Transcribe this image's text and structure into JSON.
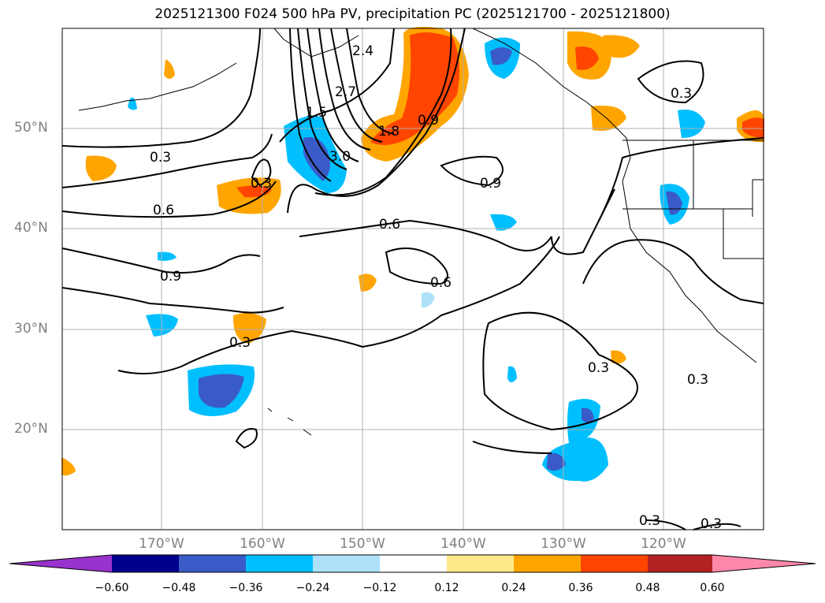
{
  "title": "2025121300 F024 500 hPa PV, precipitation PC (2025121700 - 2025121800)",
  "lat_labels": [
    "50°N",
    "40°N",
    "30°N",
    "20°N"
  ],
  "lon_labels": [
    "170°W",
    "160°W",
    "150°W",
    "140°W",
    "130°W",
    "120°W"
  ],
  "contour_labels": [
    "0.3",
    "0.6",
    "0.9",
    "0.3",
    "0.6",
    "0.9",
    "0.6",
    "0.9",
    "0.3",
    "0.3",
    "0.3",
    "0.3",
    "0.3",
    "0.3",
    "3.0",
    "1.8",
    "1.5",
    "2.4",
    "2.7"
  ],
  "colorbar": {
    "ticks": [
      "−0.60",
      "−0.48",
      "−0.36",
      "−0.24",
      "−0.12",
      "0.12",
      "0.24",
      "0.36",
      "0.48",
      "0.60"
    ],
    "colors": [
      "#9932CC",
      "#00008B",
      "#3A5BC7",
      "#00BFFF",
      "#ADE1FA",
      "#FFFFFF",
      "#FFE88A",
      "#FFA500",
      "#FF4500",
      "#B22222",
      "#FF88AA"
    ]
  }
}
